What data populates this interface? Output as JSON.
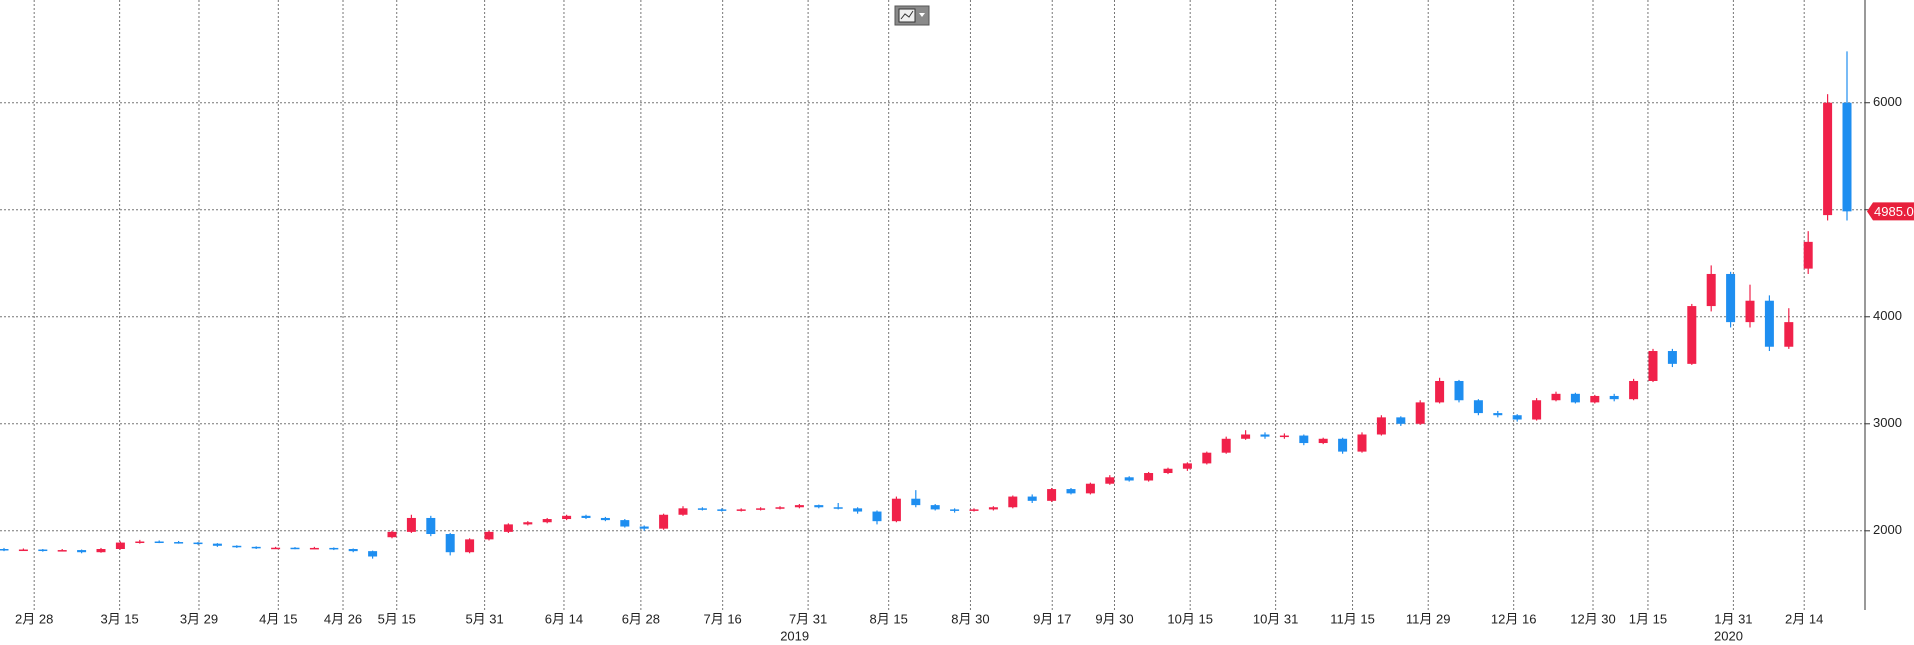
{
  "chart_data": {
    "type": "candlestick",
    "x_labels": [
      "2月 28",
      "3月 15",
      "3月 29",
      "4月 15",
      "4月 26",
      "5月 15",
      "5月 31",
      "6月 14",
      "6月 28",
      "7月 16",
      "7月 31",
      "8月 15",
      "8月 30",
      "9月 17",
      "9月 30",
      "10月 15",
      "10月 31",
      "11月 15",
      "11月 29",
      "12月 16",
      "12月 30",
      "1月 15",
      "1月 31",
      "2月 14"
    ],
    "year_labels": [
      "2019",
      "2020"
    ],
    "up_color": "#f0214a",
    "down_color": "#1e8ef0",
    "ylim": [
      1260,
      6960
    ],
    "yticks": [
      2000,
      3000,
      4000,
      5000,
      6000
    ],
    "grid": true,
    "last_price": {
      "value": 4985,
      "label": "4985.0"
    },
    "candles": [
      [
        1830,
        1840,
        1810,
        1820
      ],
      [
        1820,
        1835,
        1815,
        1825
      ],
      [
        1825,
        1830,
        1805,
        1815
      ],
      [
        1815,
        1830,
        1810,
        1820
      ],
      [
        1820,
        1825,
        1790,
        1800
      ],
      [
        1800,
        1840,
        1795,
        1830
      ],
      [
        1830,
        1900,
        1825,
        1890
      ],
      [
        1890,
        1915,
        1880,
        1900
      ],
      [
        1900,
        1910,
        1885,
        1895
      ],
      [
        1895,
        1905,
        1880,
        1890
      ],
      [
        1890,
        1895,
        1870,
        1880
      ],
      [
        1880,
        1885,
        1850,
        1860
      ],
      [
        1860,
        1865,
        1840,
        1850
      ],
      [
        1850,
        1855,
        1830,
        1840
      ],
      [
        1840,
        1850,
        1830,
        1842
      ],
      [
        1842,
        1848,
        1828,
        1835
      ],
      [
        1835,
        1850,
        1830,
        1840
      ],
      [
        1840,
        1845,
        1820,
        1830
      ],
      [
        1830,
        1835,
        1800,
        1810
      ],
      [
        1810,
        1815,
        1740,
        1760
      ],
      [
        1940,
        2000,
        1930,
        1990
      ],
      [
        1990,
        2150,
        1980,
        2120
      ],
      [
        2120,
        2140,
        1950,
        1970
      ],
      [
        1970,
        1980,
        1770,
        1800
      ],
      [
        1800,
        1930,
        1790,
        1920
      ],
      [
        1920,
        2000,
        1910,
        1990
      ],
      [
        1990,
        2070,
        1980,
        2060
      ],
      [
        2060,
        2090,
        2050,
        2080
      ],
      [
        2080,
        2120,
        2070,
        2110
      ],
      [
        2110,
        2150,
        2100,
        2140
      ],
      [
        2140,
        2150,
        2110,
        2120
      ],
      [
        2120,
        2130,
        2090,
        2100
      ],
      [
        2100,
        2110,
        2030,
        2040
      ],
      [
        2040,
        2050,
        2000,
        2020
      ],
      [
        2020,
        2160,
        2010,
        2150
      ],
      [
        2150,
        2230,
        2140,
        2210
      ],
      [
        2210,
        2220,
        2190,
        2200
      ],
      [
        2200,
        2210,
        2180,
        2190
      ],
      [
        2190,
        2210,
        2180,
        2200
      ],
      [
        2200,
        2220,
        2190,
        2210
      ],
      [
        2210,
        2230,
        2200,
        2220
      ],
      [
        2220,
        2250,
        2210,
        2240
      ],
      [
        2240,
        2245,
        2210,
        2220
      ],
      [
        2220,
        2260,
        2200,
        2210
      ],
      [
        2210,
        2220,
        2160,
        2180
      ],
      [
        2180,
        2190,
        2060,
        2090
      ],
      [
        2090,
        2320,
        2080,
        2300
      ],
      [
        2300,
        2380,
        2220,
        2240
      ],
      [
        2240,
        2250,
        2190,
        2200
      ],
      [
        2200,
        2210,
        2170,
        2190
      ],
      [
        2190,
        2210,
        2180,
        2200
      ],
      [
        2200,
        2230,
        2190,
        2220
      ],
      [
        2220,
        2330,
        2210,
        2320
      ],
      [
        2320,
        2340,
        2260,
        2280
      ],
      [
        2280,
        2400,
        2270,
        2390
      ],
      [
        2390,
        2400,
        2340,
        2350
      ],
      [
        2350,
        2450,
        2340,
        2440
      ],
      [
        2440,
        2520,
        2430,
        2500
      ],
      [
        2500,
        2510,
        2460,
        2470
      ],
      [
        2470,
        2550,
        2460,
        2540
      ],
      [
        2540,
        2590,
        2530,
        2580
      ],
      [
        2580,
        2640,
        2560,
        2630
      ],
      [
        2630,
        2740,
        2620,
        2730
      ],
      [
        2730,
        2880,
        2720,
        2860
      ],
      [
        2860,
        2940,
        2850,
        2900
      ],
      [
        2900,
        2920,
        2860,
        2880
      ],
      [
        2880,
        2910,
        2860,
        2890
      ],
      [
        2890,
        2900,
        2800,
        2820
      ],
      [
        2820,
        2870,
        2810,
        2860
      ],
      [
        2860,
        2870,
        2720,
        2740
      ],
      [
        2740,
        2920,
        2730,
        2900
      ],
      [
        2900,
        3080,
        2890,
        3060
      ],
      [
        3060,
        3070,
        2980,
        3000
      ],
      [
        3000,
        3220,
        2990,
        3200
      ],
      [
        3200,
        3430,
        3190,
        3400
      ],
      [
        3400,
        3410,
        3200,
        3220
      ],
      [
        3220,
        3230,
        3080,
        3100
      ],
      [
        3100,
        3120,
        3060,
        3080
      ],
      [
        3080,
        3090,
        3020,
        3040
      ],
      [
        3040,
        3240,
        3030,
        3220
      ],
      [
        3220,
        3300,
        3210,
        3280
      ],
      [
        3280,
        3290,
        3190,
        3200
      ],
      [
        3200,
        3270,
        3190,
        3260
      ],
      [
        3260,
        3280,
        3210,
        3230
      ],
      [
        3230,
        3420,
        3220,
        3400
      ],
      [
        3400,
        3700,
        3390,
        3680
      ],
      [
        3680,
        3700,
        3530,
        3560
      ],
      [
        3560,
        4120,
        3550,
        4100
      ],
      [
        4100,
        4480,
        4050,
        4400
      ],
      [
        4400,
        4420,
        3900,
        3950
      ],
      [
        3950,
        4300,
        3900,
        4150
      ],
      [
        4150,
        4200,
        3680,
        3720
      ],
      [
        3720,
        4080,
        3700,
        3950
      ],
      [
        4450,
        4800,
        4400,
        4700
      ],
      [
        4950,
        6080,
        4900,
        6000
      ],
      [
        6000,
        6480,
        4900,
        4985
      ]
    ]
  }
}
